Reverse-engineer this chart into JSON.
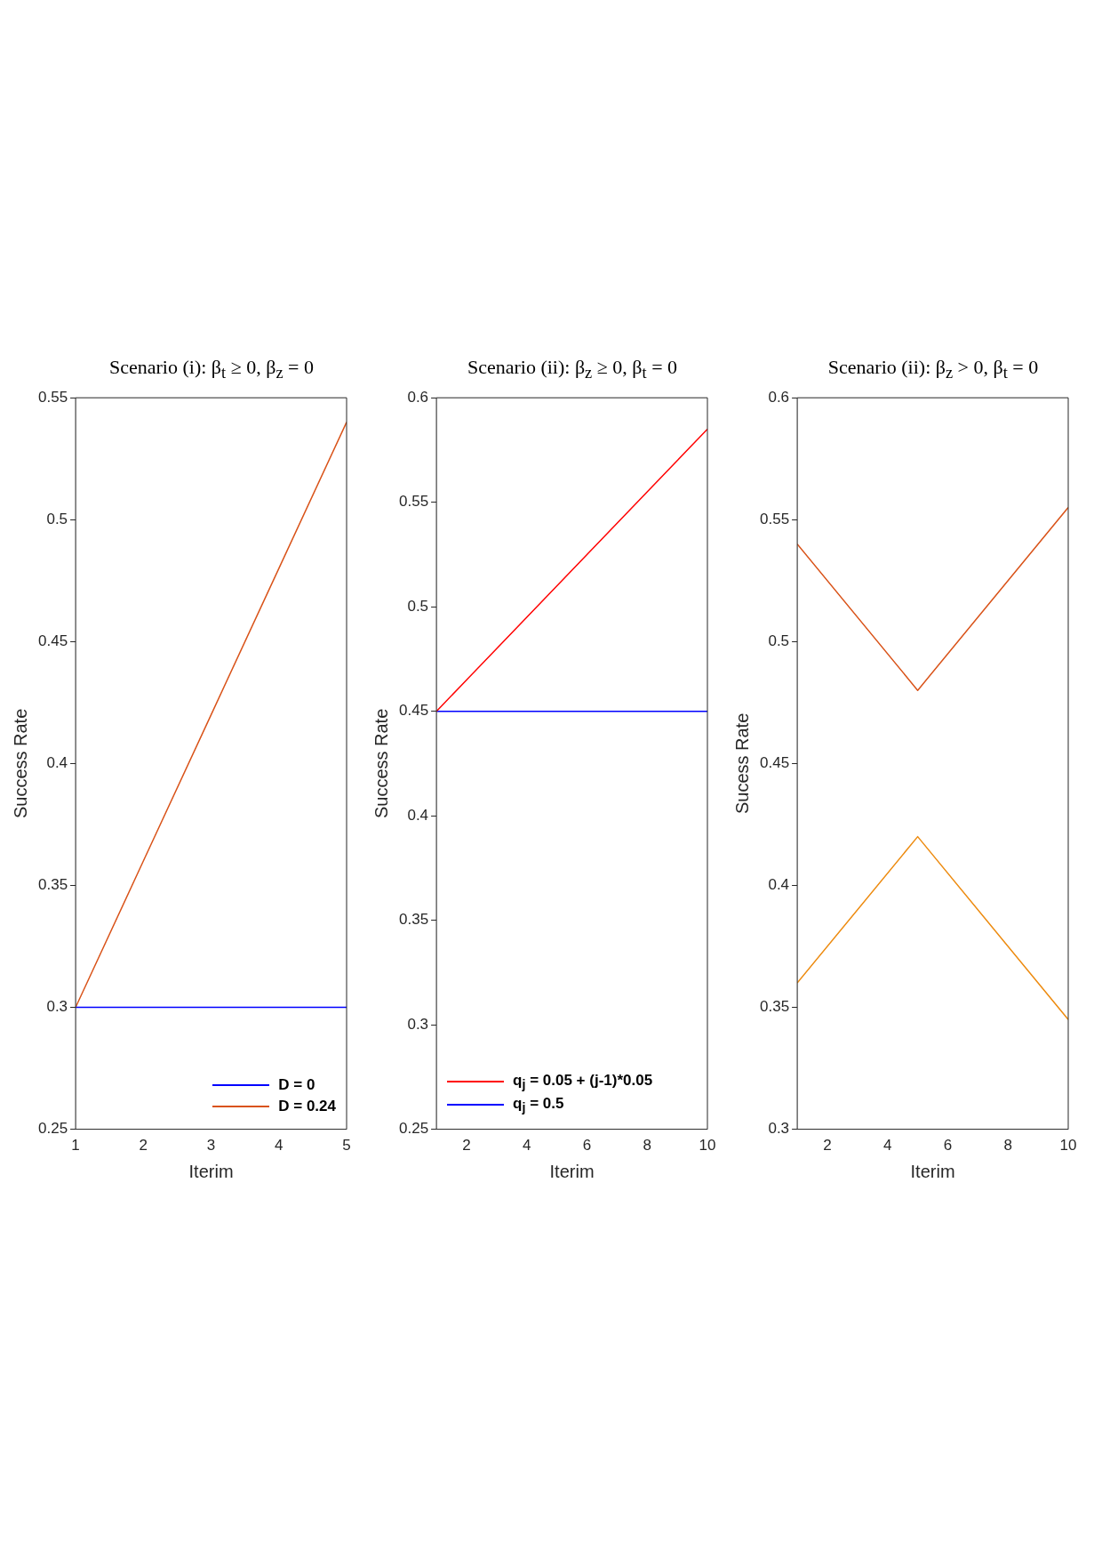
{
  "chart_data": [
    {
      "type": "line",
      "title": "Scenario (i): β$_{t}$ ≥ 0, β$_{z}$ = 0",
      "xlabel": "Iterim",
      "ylabel": "Success Rate",
      "x": [
        1,
        2,
        3,
        4,
        5
      ],
      "xlim": [
        1,
        5
      ],
      "xticks": [
        1,
        2,
        3,
        4,
        5
      ],
      "ylim": [
        0.25,
        0.55
      ],
      "yticks": [
        0.25,
        0.3,
        0.35,
        0.4,
        0.45,
        0.5,
        0.55
      ],
      "legend": "bottom right",
      "marker": "none",
      "series": [
        {
          "name": "D = 0",
          "color": "#0000ff",
          "values": [
            0.3,
            0.3,
            0.3,
            0.3,
            0.3
          ]
        },
        {
          "name": "D = 0.24",
          "color": "#d95319",
          "values": [
            0.3,
            0.36,
            0.42,
            0.48,
            0.54
          ]
        }
      ]
    },
    {
      "type": "line",
      "title": "Scenario (ii): β$_{z}$ ≥ 0, β$_{t}$ = 0",
      "xlabel": "Iterim",
      "ylabel": "Success Rate",
      "x": [
        1,
        2,
        3,
        4,
        5,
        6,
        7,
        8,
        9,
        10
      ],
      "xlim": [
        1,
        10
      ],
      "xticks": [
        2,
        4,
        6,
        8,
        10
      ],
      "ylim": [
        0.25,
        0.6
      ],
      "yticks": [
        0.25,
        0.3,
        0.35,
        0.4,
        0.45,
        0.5,
        0.55,
        0.6
      ],
      "legend": "bottom left",
      "marker": "none",
      "series": [
        {
          "name": "q$_{j}$ = 0.05 + (j-1)*0.05",
          "color": "#ff0000",
          "values": [
            0.45,
            0.465,
            0.48,
            0.495,
            0.51,
            0.525,
            0.54,
            0.555,
            0.57,
            0.585
          ]
        },
        {
          "name": "q$_{j}$ = 0.5",
          "color": "#0000ff",
          "values": [
            0.45,
            0.45,
            0.45,
            0.45,
            0.45,
            0.45,
            0.45,
            0.45,
            0.45,
            0.45
          ]
        }
      ]
    },
    {
      "type": "line",
      "title": "Scenario (ii): β$_{z}$ > 0, β$_{t}$ = 0",
      "xlabel": "Iterim",
      "ylabel": "Sucess Rate",
      "x": [
        1,
        5,
        10
      ],
      "xlim": [
        1,
        10
      ],
      "xticks": [
        2,
        4,
        6,
        8,
        10
      ],
      "ylim": [
        0.3,
        0.6
      ],
      "yticks": [
        0.3,
        0.35,
        0.4,
        0.45,
        0.5,
        0.55,
        0.6
      ],
      "marker": "none",
      "series": [
        {
          "color": "#d95319",
          "values": [
            0.54,
            0.48,
            0.555
          ]
        },
        {
          "color": "#ed8b10",
          "values": [
            0.36,
            0.42,
            0.345
          ]
        }
      ]
    }
  ]
}
